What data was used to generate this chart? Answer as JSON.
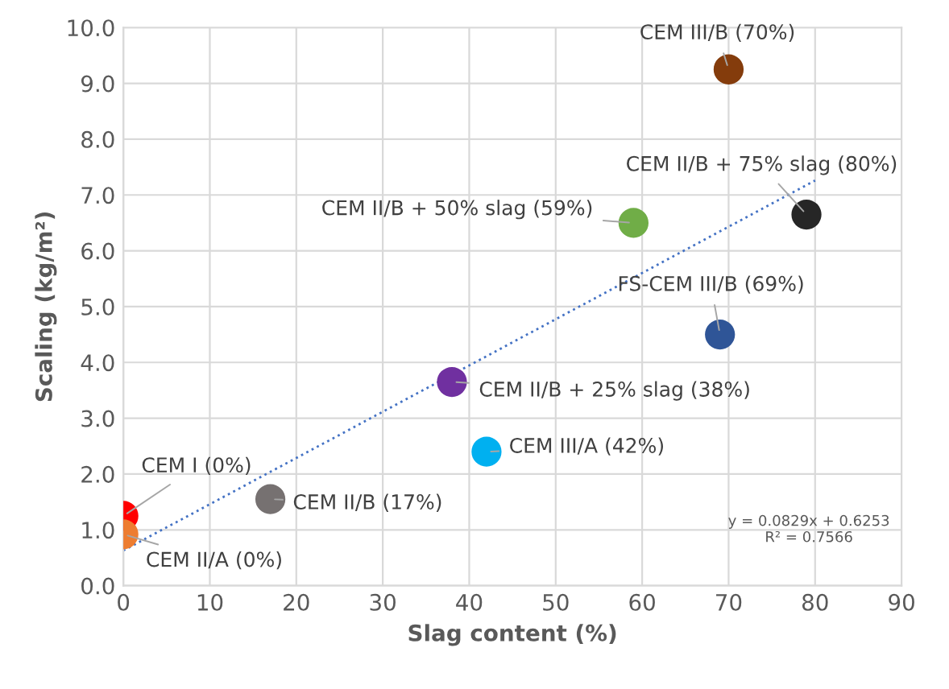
{
  "chart_data": {
    "type": "scatter",
    "xlabel": "Slag content (%)",
    "ylabel": "Scaling (kg/m²)",
    "xlim": [
      0,
      90
    ],
    "xticks": [
      0,
      10,
      20,
      30,
      40,
      50,
      60,
      70,
      80,
      90
    ],
    "ylim": [
      0,
      10
    ],
    "yticks": [
      {
        "value": 0,
        "label": "0.0"
      },
      {
        "value": 1,
        "label": "1.0"
      },
      {
        "value": 2,
        "label": "2.0"
      },
      {
        "value": 3,
        "label": "3.0"
      },
      {
        "value": 4,
        "label": "4.0"
      },
      {
        "value": 5,
        "label": "5.0"
      },
      {
        "value": 6,
        "label": "6.0"
      },
      {
        "value": 7,
        "label": "7.0"
      },
      {
        "value": 8,
        "label": "8.0"
      },
      {
        "value": 9,
        "label": "9.0"
      },
      {
        "value": 10,
        "label": "10.0"
      }
    ],
    "grid": true,
    "series": [
      {
        "marker": "circle",
        "x": [
          0,
          0,
          17,
          38,
          42,
          59,
          69,
          70,
          79
        ],
        "values": [
          1.25,
          0.92,
          1.55,
          3.65,
          2.4,
          6.5,
          4.5,
          9.25,
          6.65
        ],
        "colors": [
          "#ff0000",
          "#ed7d31",
          "#767171",
          "#7030a0",
          "#00b0f0",
          "#70ad47",
          "#2f5597",
          "#843c0c",
          "#262626"
        ]
      },
      {
        "type": "line",
        "x": [
          0,
          80
        ],
        "values": [
          0.63,
          7.26
        ],
        "color": "#4472c4",
        "line_style": "dotted"
      }
    ],
    "annotations": [
      {
        "text": "CEM I (0%)",
        "x": 0,
        "y": 1.25
      },
      {
        "text": "CEM II/A (0%)",
        "x": 0,
        "y": 0.92
      },
      {
        "text": "CEM II/B (17%)",
        "x": 17,
        "y": 1.55
      },
      {
        "text": "CEM II/B + 25% slag (38%)",
        "x": 38,
        "y": 3.65
      },
      {
        "text": "CEM III/A (42%)",
        "x": 42,
        "y": 2.4
      },
      {
        "text": "CEM II/B + 50% slag (59%)",
        "x": 59,
        "y": 6.5
      },
      {
        "text": "FS-CEM III/B (69%)",
        "x": 69,
        "y": 4.5
      },
      {
        "text": "CEM III/B (70%)",
        "x": 70,
        "y": 9.25
      },
      {
        "text": "CEM II/B + 75% slag (80%)",
        "x": 79,
        "y": 6.65
      },
      "y = 0.0829x + 0.6253\nR² = 0.7566"
    ]
  }
}
